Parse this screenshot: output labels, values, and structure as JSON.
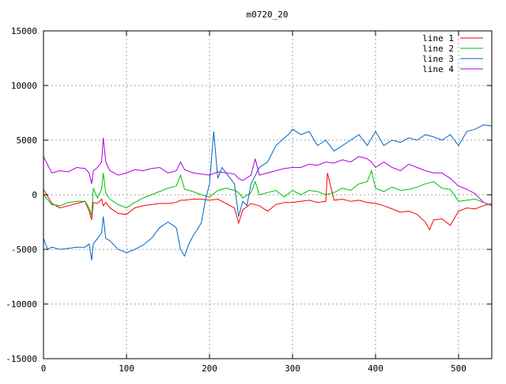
{
  "chart_data": {
    "type": "line",
    "title": "m0720_20",
    "xlim": [
      0,
      540
    ],
    "ylim": [
      -15000,
      15000
    ],
    "xticks": [
      "0",
      "100",
      "200",
      "300",
      "400",
      "500"
    ],
    "yticks": [
      "15000",
      "10000",
      "5000",
      "0",
      "-5000",
      "-10000",
      "-15000"
    ],
    "xtick_values": [
      0,
      100,
      200,
      300,
      400,
      500
    ],
    "ytick_values": [
      15000,
      10000,
      5000,
      0,
      -5000,
      -10000,
      -15000
    ],
    "grid": true,
    "legend_position": "top-right",
    "series": [
      {
        "name": "line 1",
        "color": "#ff0000",
        "x": [
          0,
          10,
          20,
          30,
          40,
          50,
          55,
          58,
          60,
          65,
          70,
          72,
          75,
          80,
          90,
          100,
          110,
          120,
          130,
          140,
          150,
          160,
          165,
          170,
          180,
          190,
          200,
          210,
          220,
          230,
          235,
          240,
          250,
          260,
          270,
          280,
          290,
          300,
          310,
          320,
          330,
          340,
          342,
          350,
          360,
          370,
          380,
          390,
          400,
          410,
          420,
          430,
          440,
          450,
          460,
          465,
          470,
          480,
          490,
          500,
          510,
          520,
          530,
          540
        ],
        "y": [
          500,
          -800,
          -1200,
          -1000,
          -800,
          -600,
          -1500,
          -2300,
          -700,
          -800,
          -400,
          -1000,
          -700,
          -1200,
          -1700,
          -1800,
          -1200,
          -1000,
          -900,
          -800,
          -800,
          -700,
          -500,
          -500,
          -400,
          -400,
          -500,
          -400,
          -800,
          -1200,
          -2600,
          -1400,
          -800,
          -1000,
          -1500,
          -900,
          -700,
          -700,
          -600,
          -500,
          -700,
          -600,
          2000,
          -500,
          -400,
          -600,
          -500,
          -700,
          -800,
          -1000,
          -1300,
          -1600,
          -1500,
          -1800,
          -2500,
          -3200,
          -2300,
          -2200,
          -2800,
          -1500,
          -1200,
          -1300,
          -1000,
          -800
        ]
      },
      {
        "name": "line 2",
        "color": "#00c000",
        "x": [
          0,
          10,
          20,
          30,
          40,
          50,
          55,
          58,
          60,
          65,
          70,
          72,
          75,
          80,
          90,
          100,
          110,
          120,
          130,
          140,
          150,
          160,
          165,
          170,
          180,
          190,
          200,
          210,
          220,
          230,
          235,
          240,
          250,
          255,
          260,
          270,
          280,
          290,
          300,
          310,
          320,
          330,
          340,
          350,
          360,
          370,
          380,
          390,
          395,
          400,
          410,
          420,
          430,
          440,
          450,
          460,
          470,
          480,
          490,
          500,
          510,
          520,
          530,
          540
        ],
        "y": [
          0,
          -900,
          -1000,
          -700,
          -600,
          -600,
          -1200,
          -1900,
          600,
          -300,
          500,
          2000,
          100,
          -400,
          -900,
          -1200,
          -700,
          -300,
          0,
          300,
          600,
          800,
          1800,
          500,
          300,
          0,
          -200,
          400,
          600,
          400,
          200,
          -300,
          200,
          1200,
          0,
          200,
          400,
          -200,
          400,
          0,
          400,
          300,
          0,
          200,
          600,
          400,
          1000,
          1200,
          2200,
          600,
          300,
          700,
          400,
          500,
          700,
          1000,
          1200,
          600,
          500,
          -600,
          -500,
          -400,
          -700,
          -1000
        ]
      },
      {
        "name": "line 3",
        "color": "#0066cc",
        "x": [
          0,
          5,
          10,
          20,
          30,
          40,
          50,
          55,
          58,
          60,
          65,
          70,
          72,
          75,
          80,
          90,
          100,
          110,
          120,
          130,
          140,
          150,
          160,
          165,
          170,
          175,
          180,
          190,
          195,
          200,
          205,
          210,
          215,
          220,
          230,
          235,
          240,
          245,
          250,
          260,
          270,
          280,
          290,
          295,
          300,
          310,
          320,
          330,
          340,
          350,
          360,
          370,
          380,
          390,
          400,
          410,
          420,
          430,
          440,
          450,
          460,
          470,
          480,
          490,
          500,
          510,
          520,
          530,
          540
        ],
        "y": [
          -4000,
          -5000,
          -4800,
          -5000,
          -4900,
          -4800,
          -4800,
          -4500,
          -6000,
          -4500,
          -4000,
          -3500,
          -2000,
          -4000,
          -4200,
          -5000,
          -5300,
          -5000,
          -4600,
          -4000,
          -3000,
          -2500,
          -3000,
          -5000,
          -5600,
          -4500,
          -3800,
          -2600,
          -500,
          1000,
          5800,
          1500,
          2500,
          2000,
          1000,
          -2000,
          -600,
          -1000,
          1000,
          2500,
          3000,
          4500,
          5200,
          5500,
          6000,
          5500,
          5800,
          4500,
          5000,
          4000,
          4500,
          5000,
          5500,
          4500,
          5800,
          4500,
          5000,
          4800,
          5200,
          5000,
          5500,
          5300,
          5000,
          5500,
          4500,
          5800,
          6000,
          6400,
          6300
        ]
      },
      {
        "name": "line 4",
        "color": "#b000e0",
        "x": [
          0,
          10,
          20,
          30,
          40,
          50,
          55,
          58,
          60,
          65,
          70,
          72,
          75,
          80,
          90,
          100,
          110,
          120,
          130,
          140,
          150,
          160,
          165,
          170,
          180,
          190,
          200,
          210,
          220,
          230,
          235,
          240,
          250,
          255,
          260,
          270,
          280,
          290,
          300,
          310,
          320,
          330,
          340,
          350,
          360,
          370,
          380,
          390,
          395,
          400,
          410,
          420,
          430,
          440,
          450,
          460,
          470,
          480,
          490,
          500,
          510,
          520,
          530,
          540
        ],
        "y": [
          3500,
          2000,
          2200,
          2100,
          2500,
          2400,
          2000,
          1000,
          2200,
          2500,
          3000,
          5200,
          3000,
          2200,
          1800,
          2000,
          2300,
          2200,
          2400,
          2500,
          2000,
          2200,
          3000,
          2300,
          2000,
          1900,
          1800,
          2100,
          2000,
          1900,
          1500,
          1300,
          1800,
          3300,
          1800,
          2000,
          2200,
          2400,
          2500,
          2500,
          2800,
          2700,
          3000,
          2900,
          3200,
          3000,
          3500,
          3300,
          3000,
          2500,
          3000,
          2500,
          2200,
          2800,
          2500,
          2200,
          2000,
          2000,
          1500,
          800,
          500,
          100,
          -700,
          -1000
        ]
      }
    ]
  }
}
